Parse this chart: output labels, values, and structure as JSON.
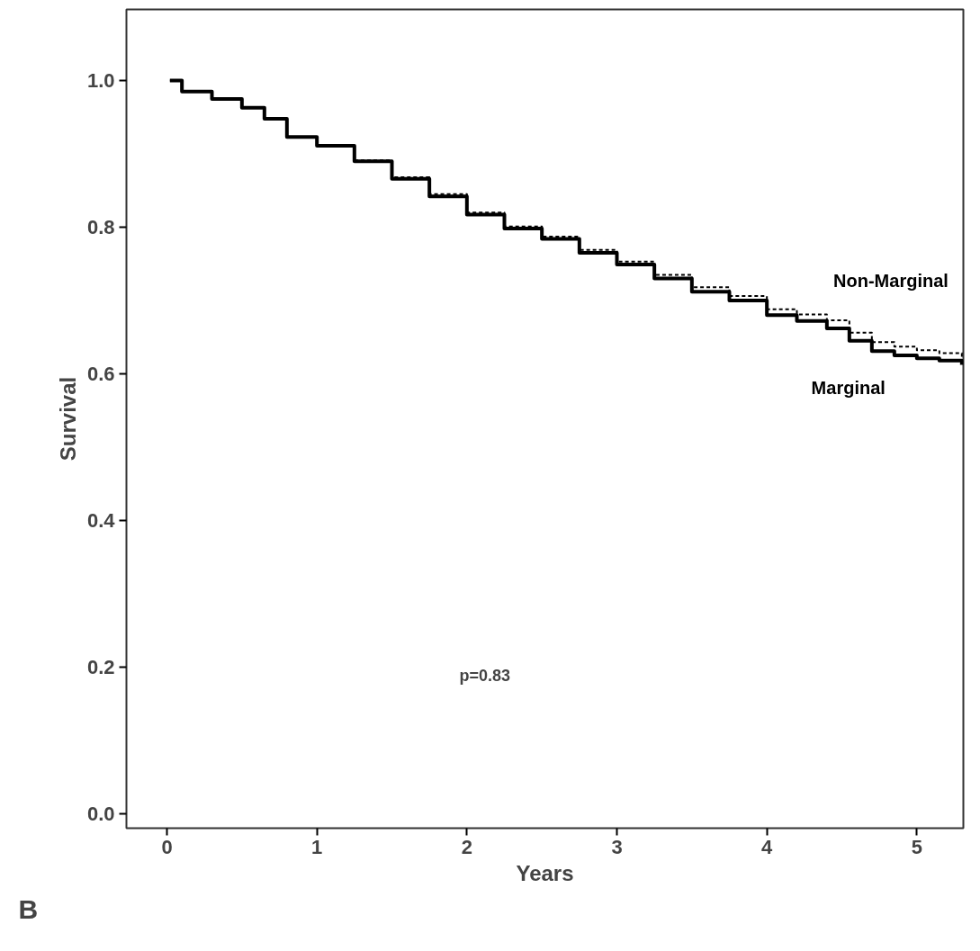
{
  "chart_data": {
    "type": "step",
    "xlabel": "Years",
    "ylabel": "Survival",
    "xlim": [
      -0.27,
      5.31
    ],
    "ylim": [
      -0.02,
      1.097
    ],
    "xticks": [
      0,
      1,
      2,
      3,
      4,
      5
    ],
    "yticks": [
      {
        "value": 0,
        "label": "0.0"
      },
      {
        "value": 0.2,
        "label": "0.2"
      },
      {
        "value": 0.4,
        "label": "0.4"
      },
      {
        "value": 0.6,
        "label": "0.6"
      },
      {
        "value": 0.8,
        "label": "0.8"
      },
      {
        "value": 1,
        "label": "1.0"
      }
    ],
    "grid": false,
    "marker": "none",
    "series": [
      {
        "name": "Marginal",
        "color": "#000000",
        "line_style": "solid",
        "x": [
          0.02,
          0.1,
          0.3,
          0.5,
          0.65,
          0.8,
          1.0,
          1.25,
          1.5,
          1.75,
          2.0,
          2.25,
          2.5,
          2.75,
          3.0,
          3.25,
          3.5,
          3.75,
          4.0,
          4.2,
          4.4,
          4.55,
          4.7,
          4.85,
          5.0,
          5.15,
          5.3
        ],
        "values": [
          1.0,
          0.985,
          0.975,
          0.963,
          0.948,
          0.923,
          0.911,
          0.89,
          0.866,
          0.842,
          0.817,
          0.798,
          0.784,
          0.765,
          0.749,
          0.73,
          0.712,
          0.7,
          0.68,
          0.672,
          0.662,
          0.645,
          0.631,
          0.625,
          0.621,
          0.618,
          0.612
        ]
      },
      {
        "name": "Non-Marginal",
        "color": "#000000",
        "line_style": "dashed",
        "x": [
          0.02,
          0.1,
          0.3,
          0.5,
          0.65,
          0.8,
          1.0,
          1.25,
          1.5,
          1.75,
          2.0,
          2.25,
          2.5,
          2.75,
          3.0,
          3.25,
          3.5,
          3.75,
          4.0,
          4.2,
          4.4,
          4.55,
          4.7,
          4.85,
          5.0,
          5.15,
          5.3
        ],
        "values": [
          1.0,
          0.985,
          0.975,
          0.963,
          0.948,
          0.923,
          0.911,
          0.891,
          0.868,
          0.845,
          0.82,
          0.801,
          0.787,
          0.769,
          0.753,
          0.735,
          0.718,
          0.706,
          0.688,
          0.681,
          0.673,
          0.656,
          0.643,
          0.637,
          0.632,
          0.628,
          0.622
        ]
      }
    ],
    "annotations": [
      "p=0.83",
      "B"
    ]
  }
}
